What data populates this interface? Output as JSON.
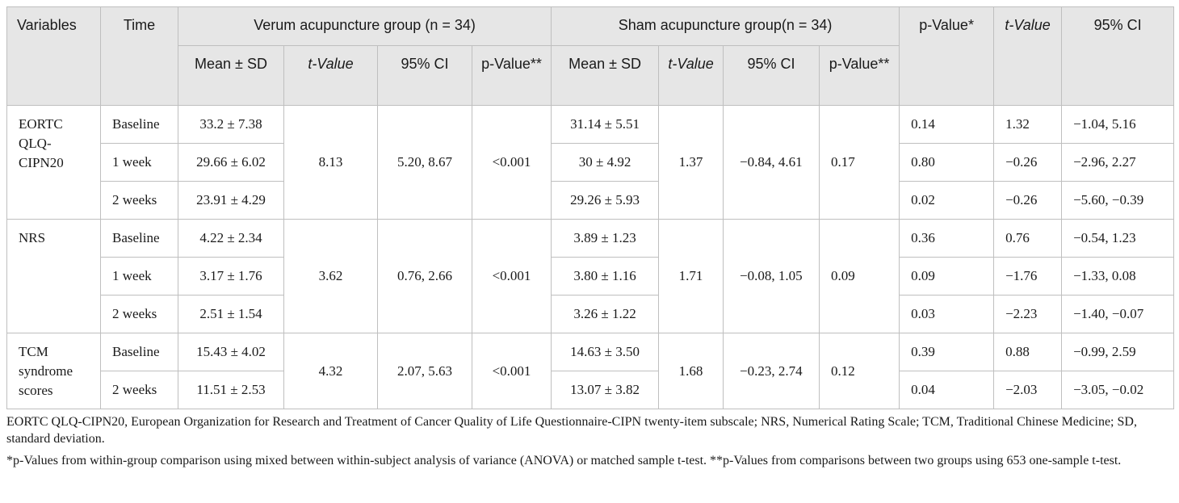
{
  "table": {
    "header": {
      "variables": "Variables",
      "time": "Time",
      "verum": "Verum acupuncture group (n = 34)",
      "sham": "Sham acupuncture group(n = 34)",
      "p_value_star": "p-Value*",
      "t_value_label": "t-Value",
      "ci": "95% CI",
      "mean_sd": "Mean ± SD",
      "p_value_2star": "p-Value**"
    },
    "groups": [
      {
        "variable": "EORTC QLQ-CIPN20",
        "verum_t": "8.13",
        "verum_ci": "5.20, 8.67",
        "verum_p": "<0.001",
        "sham_t": "1.37",
        "sham_ci": "−0.84, 4.61",
        "sham_p": "0.17",
        "rows": [
          {
            "time": "Baseline",
            "verum_mean": "33.2 ± 7.38",
            "sham_mean": "31.14 ± 5.51",
            "p": "0.14",
            "t": "1.32",
            "ci": "−1.04, 5.16"
          },
          {
            "time": "1 week",
            "verum_mean": "29.66 ± 6.02",
            "sham_mean": "30 ± 4.92",
            "p": "0.80",
            "t": "−0.26",
            "ci": "−2.96, 2.27"
          },
          {
            "time": "2 weeks",
            "verum_mean": "23.91 ± 4.29",
            "sham_mean": "29.26 ± 5.93",
            "p": "0.02",
            "t": "−0.26",
            "ci": "−5.60, −0.39"
          }
        ]
      },
      {
        "variable": "NRS",
        "verum_t": "3.62",
        "verum_ci": "0.76, 2.66",
        "verum_p": "<0.001",
        "sham_t": "1.71",
        "sham_ci": "−0.08, 1.05",
        "sham_p": "0.09",
        "rows": [
          {
            "time": "Baseline",
            "verum_mean": "4.22 ± 2.34",
            "sham_mean": "3.89 ± 1.23",
            "p": "0.36",
            "t": "0.76",
            "ci": "−0.54, 1.23"
          },
          {
            "time": "1 week",
            "verum_mean": "3.17 ± 1.76",
            "sham_mean": "3.80 ± 1.16",
            "p": "0.09",
            "t": "−1.76",
            "ci": "−1.33, 0.08"
          },
          {
            "time": "2 weeks",
            "verum_mean": "2.51 ± 1.54",
            "sham_mean": "3.26 ± 1.22",
            "p": "0.03",
            "t": "−2.23",
            "ci": "−1.40, −0.07"
          }
        ]
      },
      {
        "variable": "TCM syndrome scores",
        "verum_t": "4.32",
        "verum_ci": "2.07, 5.63",
        "verum_p": "<0.001",
        "sham_t": "1.68",
        "sham_ci": "−0.23, 2.74",
        "sham_p": "0.12",
        "rows": [
          {
            "time": "Baseline",
            "verum_mean": "15.43 ± 4.02",
            "sham_mean": "14.63 ± 3.50",
            "p": "0.39",
            "t": "0.88",
            "ci": "−0.99, 2.59"
          },
          {
            "time": "2 weeks",
            "verum_mean": "11.51 ± 2.53",
            "sham_mean": "13.07 ± 3.82",
            "p": "0.04",
            "t": "−2.03",
            "ci": "−3.05, −0.02"
          }
        ]
      }
    ]
  },
  "footnotes": {
    "abbreviations": "EORTC QLQ-CIPN20, European Organization for Research and Treatment of Cancer Quality of Life Questionnaire-CIPN twenty-item subscale; NRS, Numerical Rating Scale; TCM, Traditional Chinese Medicine; SD, standard deviation.",
    "pvalues": "*p-Values from within-group comparison using mixed between within-subject analysis of variance (ANOVA) or matched sample t-test. **p-Values from comparisons between two groups using 653 one-sample t-test."
  }
}
